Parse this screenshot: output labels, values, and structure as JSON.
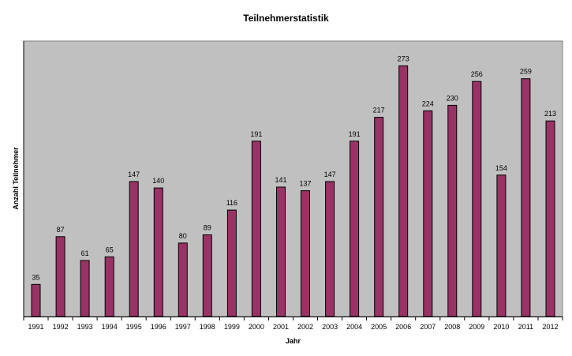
{
  "chart_data": {
    "type": "bar",
    "title": "Teilnehmerstatistik",
    "xlabel": "Jahr",
    "ylabel": "Anzahl Teilnehmer",
    "categories": [
      "1991",
      "1992",
      "1993",
      "1994",
      "1995",
      "1996",
      "1997",
      "1998",
      "1999",
      "2000",
      "2001",
      "2002",
      "2003",
      "2004",
      "2005",
      "2006",
      "2007",
      "2008",
      "2009",
      "2010",
      "2011",
      "2012"
    ],
    "values": [
      35,
      87,
      61,
      65,
      147,
      140,
      80,
      89,
      116,
      191,
      141,
      137,
      147,
      191,
      217,
      273,
      224,
      230,
      256,
      154,
      259,
      213
    ],
    "ylim": [
      0,
      300
    ],
    "grid": false,
    "legend": "none",
    "colors": {
      "bar": "#993366",
      "plot_background": "#c0c0c0",
      "axis": "#000000"
    }
  }
}
